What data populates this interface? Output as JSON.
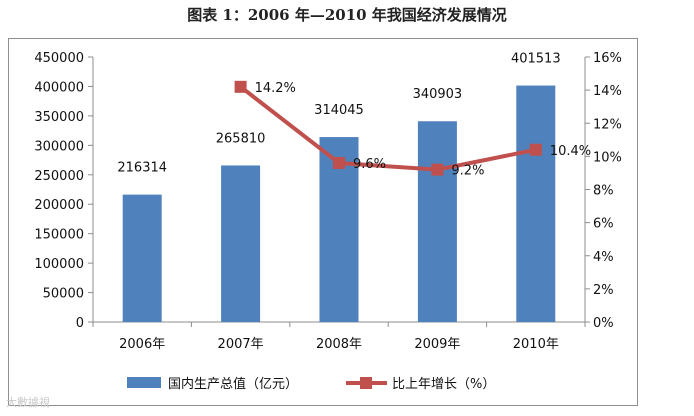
{
  "chart": {
    "title": "图表  1：2006 年—2010 年我国经济发展情况"
  },
  "watermark": "大數據視",
  "colors": {
    "bar": "#4f81bd",
    "line": "#c0504d",
    "axis": "#8c8c8c",
    "text": "#111111"
  },
  "chart_data": {
    "type": "bar",
    "title": "图表  1：2006 年—2010 年我国经济发展情况",
    "categories": [
      "2006年",
      "2007年",
      "2008年",
      "2009年",
      "2010年"
    ],
    "series": [
      {
        "name": "国内生产总值（亿元）",
        "type": "bar",
        "axis": "left",
        "values": [
          216314,
          265810,
          314045,
          340903,
          401513
        ],
        "labels": [
          "216314",
          "265810",
          "314045",
          "340903",
          "401513"
        ]
      },
      {
        "name": "比上年增长（%）",
        "type": "line",
        "axis": "right",
        "values": [
          null,
          14.2,
          9.6,
          9.2,
          10.4
        ],
        "labels": [
          "",
          "14.2%",
          "9.6%",
          "9.2%",
          "10.4%"
        ]
      }
    ],
    "ylim_left": [
      0,
      450000
    ],
    "yticks_left": [
      "0",
      "50000",
      "100000",
      "150000",
      "200000",
      "250000",
      "300000",
      "350000",
      "400000",
      "450000"
    ],
    "ylim_right": [
      0,
      16
    ],
    "yticks_right": [
      "0%",
      "2%",
      "4%",
      "6%",
      "8%",
      "10%",
      "12%",
      "14%",
      "16%"
    ],
    "grid": false,
    "legend": "bottom"
  }
}
